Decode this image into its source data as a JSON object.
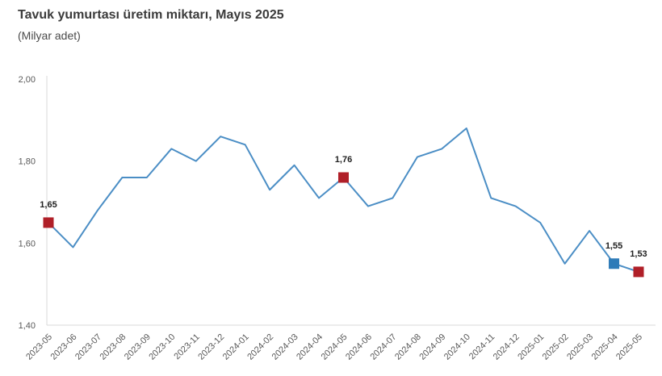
{
  "header": {
    "title": "Tavuk yumurtası üretim miktarı, Mayıs 2025",
    "subtitle": "(Milyar adet)"
  },
  "chart_data": {
    "type": "line",
    "title": "Tavuk yumurtası üretim miktarı, Mayıs 2025",
    "subtitle": "(Milyar adet)",
    "categories": [
      "2023-05",
      "2023-06",
      "2023-07",
      "2023-08",
      "2023-09",
      "2023-10",
      "2023-11",
      "2023-12",
      "2024-01",
      "2024-02",
      "2024-03",
      "2024-04",
      "2024-05",
      "2024-06",
      "2024-07",
      "2024-08",
      "2024-09",
      "2024-10",
      "2024-11",
      "2024-12",
      "2025-01",
      "2025-02",
      "2025-03",
      "2025-04",
      "2025-05"
    ],
    "values": [
      1.65,
      1.59,
      1.68,
      1.76,
      1.76,
      1.83,
      1.8,
      1.86,
      1.84,
      1.73,
      1.79,
      1.71,
      1.76,
      1.69,
      1.71,
      1.81,
      1.83,
      1.88,
      1.71,
      1.69,
      1.65,
      1.55,
      1.63,
      1.55,
      1.53
    ],
    "ylim": [
      1.4,
      2.0
    ],
    "yticks": [
      1.4,
      1.6,
      1.8,
      2.0
    ],
    "ytick_labels": [
      "1,40",
      "1,60",
      "1,80",
      "2,00"
    ],
    "grid": false,
    "legend": "none",
    "colors": {
      "line": "#4b8ec5",
      "marker_red": "#b01f28",
      "marker_blue": "#2e7bb8",
      "axis": "#d9d9d9"
    },
    "marked_points": [
      {
        "index": 0,
        "category": "2023-05",
        "label": "1,65",
        "color_key": "marker_red"
      },
      {
        "index": 12,
        "category": "2024-05",
        "label": "1,76",
        "color_key": "marker_red"
      },
      {
        "index": 23,
        "category": "2025-04",
        "label": "1,55",
        "color_key": "marker_blue"
      },
      {
        "index": 24,
        "category": "2025-05",
        "label": "1,53",
        "color_key": "marker_red"
      }
    ]
  }
}
